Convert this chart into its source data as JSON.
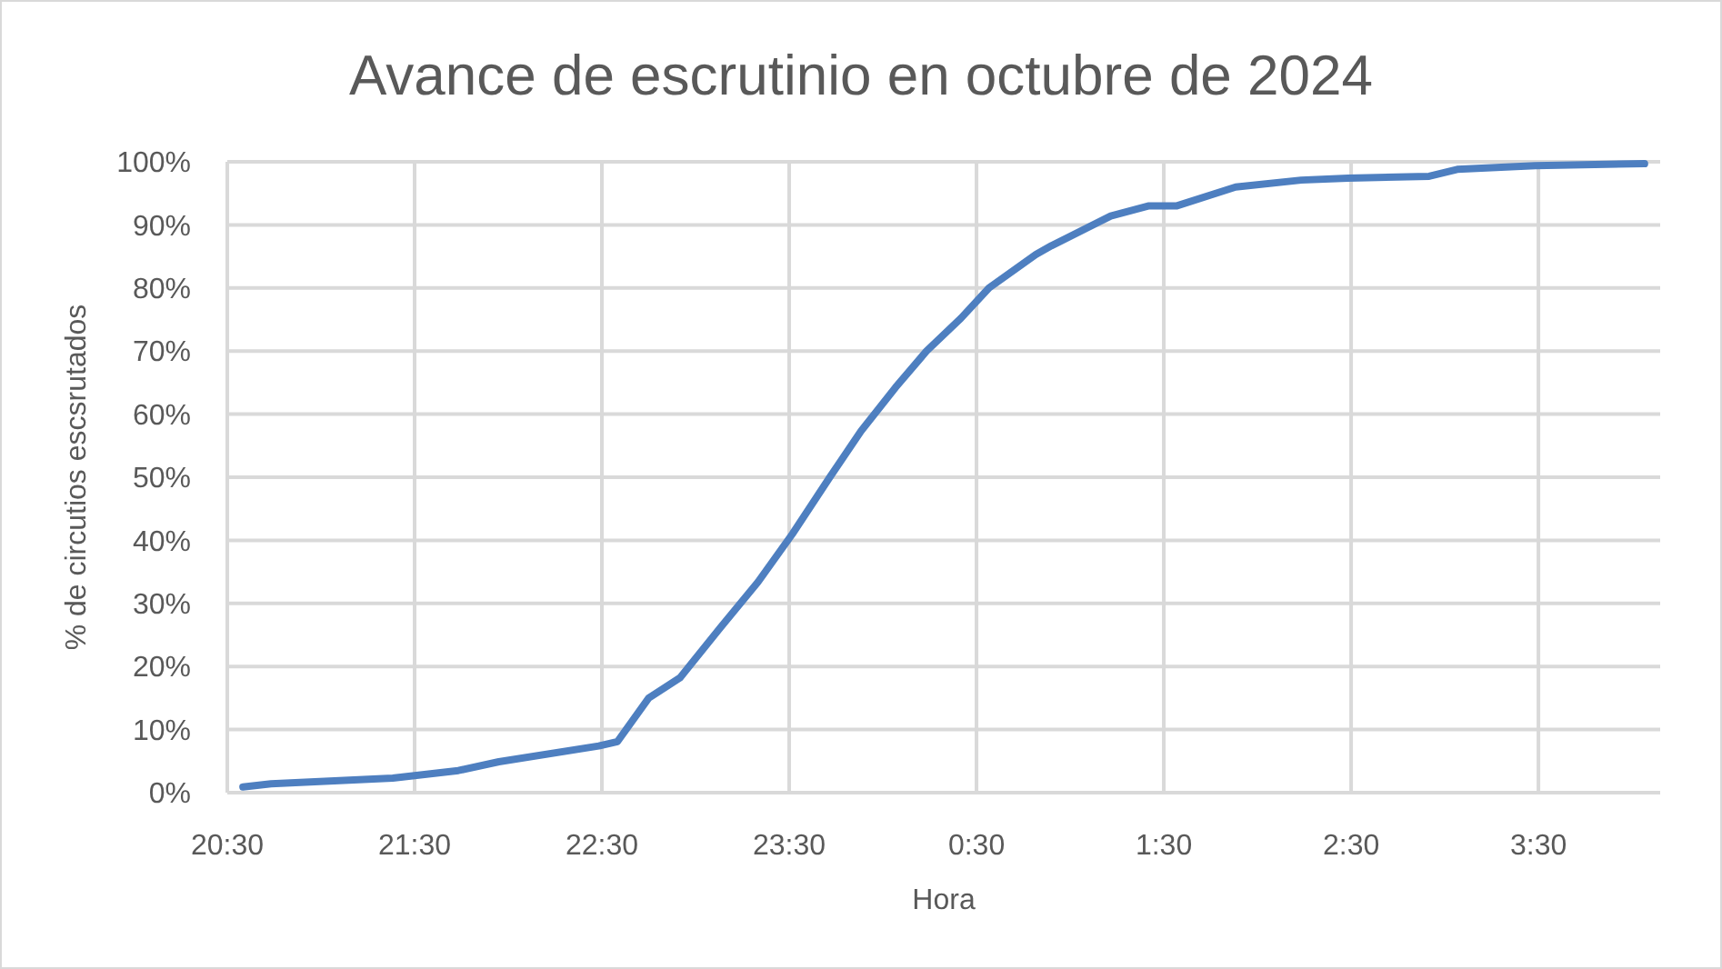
{
  "chart_data": {
    "type": "line",
    "title": "Avance de escrutinio en octubre de 2024",
    "xlabel": "Hora",
    "ylabel": "% de circutios escsrutados",
    "x": [
      "2024-10-27T20:35",
      "2024-10-27T20:44",
      "2024-10-27T21:23",
      "2024-10-27T21:44",
      "2024-10-27T21:57",
      "2024-10-27T22:29",
      "2024-10-27T22:35",
      "2024-10-27T22:45",
      "2024-10-27T22:55",
      "2024-10-27T23:08",
      "2024-10-27T23:20",
      "2024-10-27T23:31",
      "2024-10-27T23:43",
      "2024-10-27T23:53",
      "2024-10-28T00:04",
      "2024-10-28T00:14",
      "2024-10-28T00:25",
      "2024-10-28T00:34",
      "2024-10-28T00:49",
      "2024-10-28T00:54",
      "2024-10-28T01:13",
      "2024-10-28T01:25",
      "2024-10-28T01:34",
      "2024-10-28T01:53",
      "2024-10-28T02:14",
      "2024-10-28T02:29",
      "2024-10-28T02:55",
      "2024-10-28T03:04",
      "2024-10-28T03:29",
      "2024-10-28T04:04"
    ],
    "series": [
      {
        "color": "#4e7fc0",
        "values": [
          0.9,
          1.4,
          2.3,
          3.5,
          4.9,
          7.4,
          8.1,
          15,
          18.2,
          26.2,
          33.4,
          41,
          50,
          57.3,
          64.2,
          70,
          75.2,
          80,
          85.3,
          86.7,
          91.4,
          93,
          93,
          96,
          97.1,
          97.4,
          97.7,
          98.8,
          99.4,
          99.7
        ]
      }
    ],
    "xlim": [
      "2024-10-27T20:30",
      "2024-10-28T04:09"
    ],
    "xticks": [
      {
        "value": "2024-10-27T20:30",
        "label": "20:30"
      },
      {
        "value": "2024-10-27T21:30",
        "label": "21:30"
      },
      {
        "value": "2024-10-27T22:30",
        "label": "22:30"
      },
      {
        "value": "2024-10-27T23:30",
        "label": "23:30"
      },
      {
        "value": "2024-10-28T00:30",
        "label": "0:30"
      },
      {
        "value": "2024-10-28T01:30",
        "label": "1:30"
      },
      {
        "value": "2024-10-28T02:30",
        "label": "2:30"
      },
      {
        "value": "2024-10-28T03:30",
        "label": "3:30"
      }
    ],
    "ylim": [
      0,
      100
    ],
    "yticks": [
      {
        "value": 0,
        "label": "0%"
      },
      {
        "value": 10,
        "label": "10%"
      },
      {
        "value": 20,
        "label": "20%"
      },
      {
        "value": 30,
        "label": "30%"
      },
      {
        "value": 40,
        "label": "40%"
      },
      {
        "value": 50,
        "label": "50%"
      },
      {
        "value": 60,
        "label": "60%"
      },
      {
        "value": 70,
        "label": "70%"
      },
      {
        "value": 80,
        "label": "80%"
      },
      {
        "value": 90,
        "label": "90%"
      },
      {
        "value": 100,
        "label": "100%"
      }
    ],
    "grid": true,
    "marker": "none",
    "line_style": "solid"
  }
}
